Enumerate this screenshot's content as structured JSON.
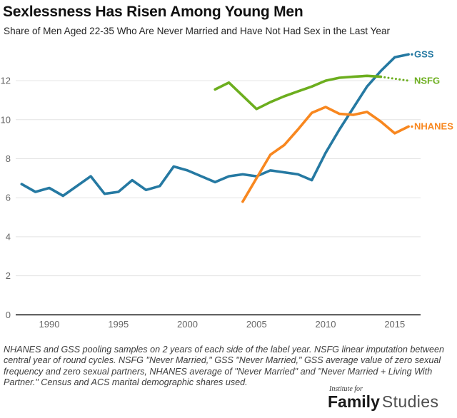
{
  "header": {
    "title": "Sexlessness Has Risen Among Young Men",
    "subtitle": "Share of Men Aged 22-35 Who Are Never Married and Have Not Had Sex in the Last Year"
  },
  "chart_data": {
    "type": "line",
    "title": "Sexlessness Has Risen Among Young Men",
    "subtitle": "Share of Men Aged 22-35 Who Are Never Married and Have Not Had Sex in the Last Year",
    "xlabel": "",
    "ylabel": "",
    "x_axis": {
      "tick_years": [
        1990,
        1995,
        2000,
        2005,
        2010,
        2015
      ],
      "range": [
        1987.5,
        2016.8
      ]
    },
    "y_axis": {
      "tick_values": [
        0,
        2,
        4,
        6,
        8,
        10,
        12
      ],
      "range": [
        0,
        13.9
      ],
      "gridlines": true
    },
    "colors": {
      "axis_text": "#666666",
      "gridline": "#e3e3e3",
      "baseline": "#4a4a4a"
    },
    "legend_position": "right-of-line-ends",
    "series": [
      {
        "name": "GSS",
        "color": "#2579a2",
        "points": [
          [
            1988,
            6.7
          ],
          [
            1989,
            6.3
          ],
          [
            1990,
            6.5
          ],
          [
            1991,
            6.1
          ],
          [
            1993,
            7.1
          ],
          [
            1994,
            6.2
          ],
          [
            1995,
            6.3
          ],
          [
            1996,
            6.9
          ],
          [
            1997,
            6.4
          ],
          [
            1998,
            6.6
          ],
          [
            1999,
            7.6
          ],
          [
            2000,
            7.4
          ],
          [
            2001,
            7.1
          ],
          [
            2002,
            6.8
          ],
          [
            2003,
            7.1
          ],
          [
            2004,
            7.2
          ],
          [
            2005,
            7.1
          ],
          [
            2006,
            7.4
          ],
          [
            2007,
            7.3
          ],
          [
            2008,
            7.2
          ],
          [
            2009,
            6.9
          ],
          [
            2010,
            8.3
          ],
          [
            2011,
            9.5
          ],
          [
            2012,
            10.6
          ],
          [
            2013,
            11.7
          ],
          [
            2014,
            12.5
          ],
          [
            2015,
            13.2
          ],
          [
            2016,
            13.35
          ]
        ]
      },
      {
        "name": "NSFG",
        "color": "#6cae1e",
        "points": [
          [
            2002,
            11.55
          ],
          [
            2003,
            11.9
          ],
          [
            2005,
            10.55
          ],
          [
            2006,
            10.9
          ],
          [
            2007,
            11.2
          ],
          [
            2008,
            11.45
          ],
          [
            2009,
            11.7
          ],
          [
            2010,
            12.0
          ],
          [
            2011,
            12.15
          ],
          [
            2012,
            12.2
          ],
          [
            2013,
            12.25
          ],
          [
            2014,
            12.2
          ]
        ],
        "dotted_tail": [
          [
            2014,
            12.2
          ],
          [
            2016,
            12.0
          ]
        ]
      },
      {
        "name": "NHANES",
        "color": "#f8871f",
        "points": [
          [
            2004,
            5.8
          ],
          [
            2006,
            8.2
          ],
          [
            2007,
            8.7
          ],
          [
            2008,
            9.5
          ],
          [
            2009,
            10.35
          ],
          [
            2010,
            10.65
          ],
          [
            2011,
            10.3
          ],
          [
            2012,
            10.25
          ],
          [
            2013,
            10.4
          ],
          [
            2014,
            9.9
          ],
          [
            2015,
            9.3
          ],
          [
            2016,
            9.65
          ]
        ]
      }
    ]
  },
  "footnote": "NHANES and GSS pooling samples on 2 years of each side of the label year. NSFG linear imputation between central year of round cycles. NSFG \"Never Married,\" GSS \"Never Married,\" GSS average value of zero sexual frequency and zero sexual partners, NHANES average of \"Never Married\" and \"Never Married + Living With Partner.\" Census and ACS marital demographic shares used.",
  "logo": {
    "top": "Institute for",
    "bold": "Family",
    "light": "Studies"
  }
}
